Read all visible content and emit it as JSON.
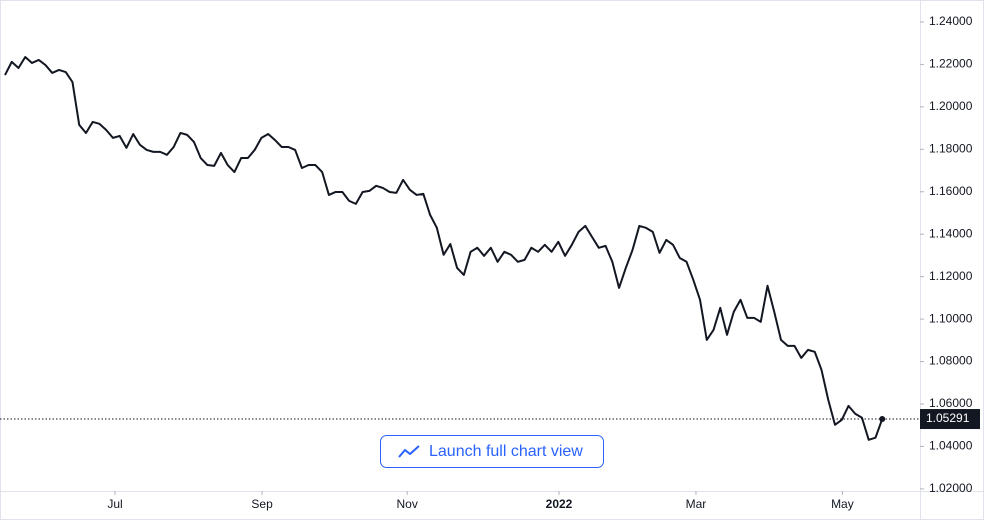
{
  "chart_data": {
    "type": "line",
    "series": [
      {
        "color": "#131722",
        "values": [
          1.215,
          1.2212,
          1.2183,
          1.2235,
          1.2207,
          1.2221,
          1.2197,
          1.216,
          1.2174,
          1.2164,
          1.2117,
          1.1915,
          1.1877,
          1.1929,
          1.192,
          1.1891,
          1.1854,
          1.1863,
          1.1807,
          1.1872,
          1.1821,
          1.1797,
          1.1788,
          1.1788,
          1.1774,
          1.1811,
          1.1877,
          1.1868,
          1.1835,
          1.1759,
          1.1726,
          1.1722,
          1.1783,
          1.1726,
          1.1693,
          1.1759,
          1.1759,
          1.1797,
          1.1854,
          1.1872,
          1.1844,
          1.1811,
          1.1811,
          1.1797,
          1.1712,
          1.1726,
          1.1726,
          1.1693,
          1.1585,
          1.1599,
          1.1599,
          1.1557,
          1.1543,
          1.1599,
          1.1604,
          1.1628,
          1.1618,
          1.1599,
          1.1595,
          1.1656,
          1.1609,
          1.1585,
          1.159,
          1.1491,
          1.143,
          1.1303,
          1.1354,
          1.1241,
          1.1208,
          1.1317,
          1.1336,
          1.1298,
          1.1336,
          1.127,
          1.1317,
          1.1303,
          1.127,
          1.1279,
          1.1336,
          1.1317,
          1.135,
          1.1317,
          1.1364,
          1.1298,
          1.135,
          1.1411,
          1.1439,
          1.1387,
          1.1336,
          1.1345,
          1.127,
          1.1147,
          1.1241,
          1.1326,
          1.1439,
          1.143,
          1.1411,
          1.1312,
          1.1373,
          1.135,
          1.1288,
          1.127,
          1.1185,
          1.1091,
          1.0902,
          1.0949,
          1.1053,
          1.0926,
          1.1034,
          1.1091,
          1.1006,
          1.1006,
          1.0987,
          1.1157,
          1.1034,
          1.0902,
          1.0874,
          1.0874,
          1.0817,
          1.0855,
          1.0846,
          1.0761,
          1.062,
          1.0502,
          1.0525,
          1.0591,
          1.0554,
          1.0535,
          1.0431,
          1.0441,
          1.05291
        ]
      }
    ],
    "xlim": [
      0,
      135.6
    ],
    "xticks": [
      {
        "value": 16.3,
        "label": "Jul"
      },
      {
        "value": 38.1,
        "label": "Sep"
      },
      {
        "value": 59.6,
        "label": "Nov"
      },
      {
        "value": 82.1,
        "label": "2022"
      },
      {
        "value": 102.4,
        "label": "Mar"
      },
      {
        "value": 124.1,
        "label": "May"
      }
    ],
    "ylim": [
      1.019,
      1.248
    ],
    "yticks": [
      {
        "value": 1.02,
        "label": "1.02000"
      },
      {
        "value": 1.04,
        "label": "1.04000"
      },
      {
        "value": 1.06,
        "label": "1.06000"
      },
      {
        "value": 1.08,
        "label": "1.08000"
      },
      {
        "value": 1.1,
        "label": "1.10000"
      },
      {
        "value": 1.12,
        "label": "1.12000"
      },
      {
        "value": 1.14,
        "label": "1.14000"
      },
      {
        "value": 1.16,
        "label": "1.16000"
      },
      {
        "value": 1.18,
        "label": "1.18000"
      },
      {
        "value": 1.2,
        "label": "1.20000"
      },
      {
        "value": 1.22,
        "label": "1.22000"
      },
      {
        "value": 1.24,
        "label": "1.24000"
      }
    ]
  },
  "button": {
    "label": "Launch full chart view"
  }
}
